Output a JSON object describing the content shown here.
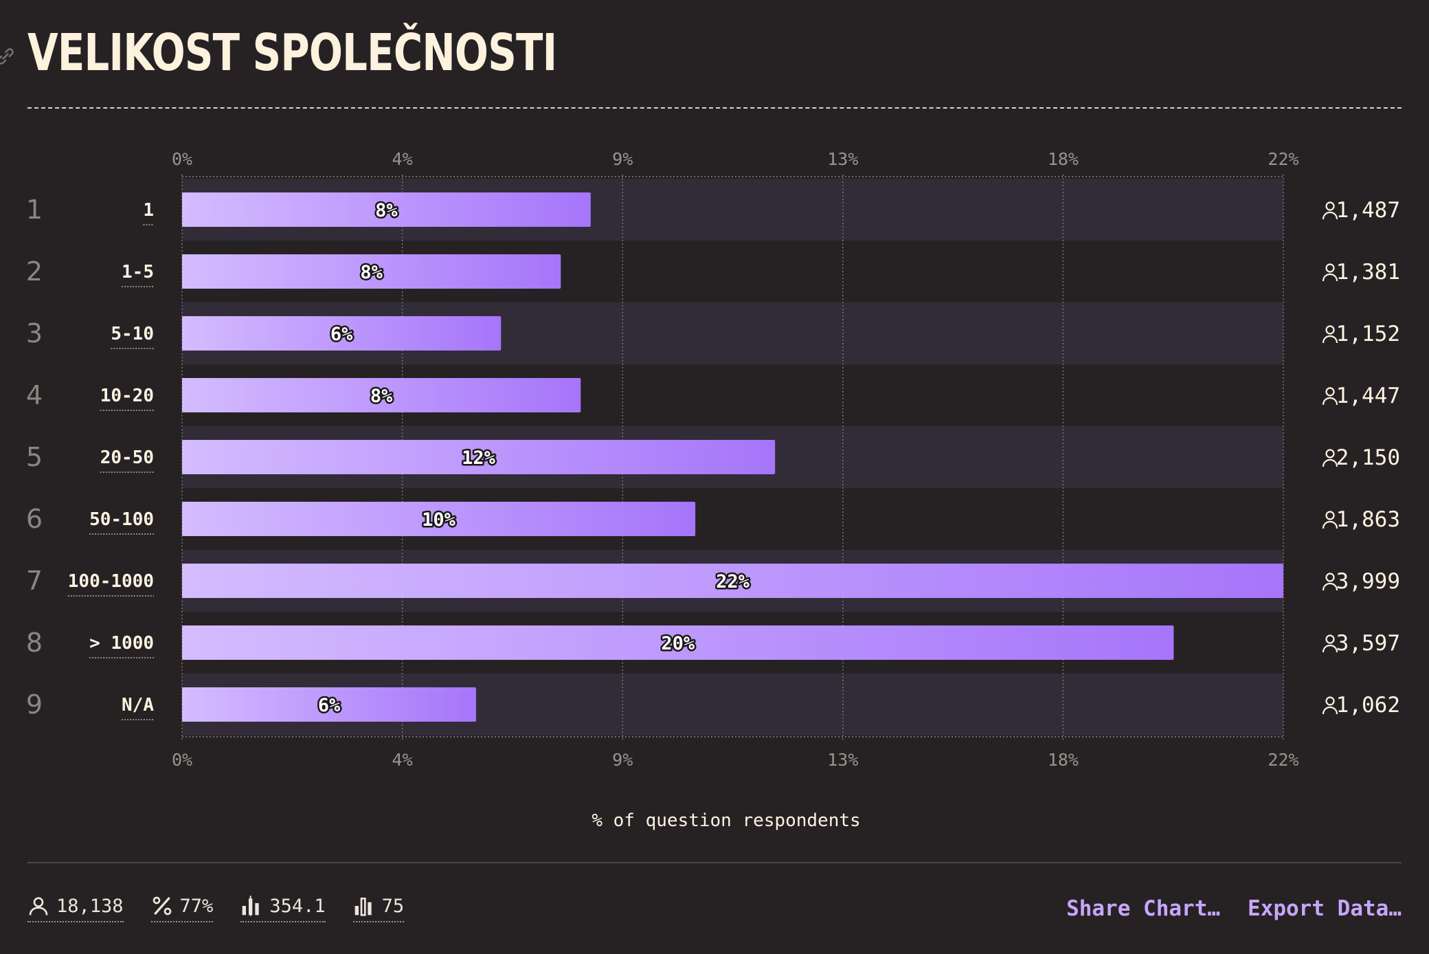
{
  "title": "VELIKOST SPOLEČNOSTI",
  "colors": {
    "background": "#262224",
    "bar_start": "#d4bcff",
    "bar_end": "#a675fa",
    "band": "#322c38",
    "link": "#c8a6ff"
  },
  "chart_data": {
    "type": "bar",
    "orientation": "horizontal",
    "categories": [
      "1",
      "1-5",
      "5-10",
      "10-20",
      "20-50",
      "50-100",
      "100-1000",
      "> 1000",
      "N/A"
    ],
    "row_numbers": [
      "1",
      "2",
      "3",
      "4",
      "5",
      "6",
      "7",
      "8",
      "9"
    ],
    "values": [
      8.2,
      7.6,
      6.4,
      8.0,
      11.9,
      10.3,
      22.1,
      19.9,
      5.9
    ],
    "value_labels": [
      "8%",
      "8%",
      "6%",
      "8%",
      "12%",
      "10%",
      "22%",
      "20%",
      "6%"
    ],
    "counts": [
      "1,487",
      "1,381",
      "1,152",
      "1,447",
      "2,150",
      "1,863",
      "3,999",
      "3,597",
      "1,062"
    ],
    "x_ticks": [
      "0%",
      "4%",
      "9%",
      "13%",
      "18%",
      "22%"
    ],
    "x_tick_values": [
      0,
      4.42,
      8.84,
      13.26,
      17.68,
      22.1
    ],
    "xlim": [
      0,
      22.1
    ],
    "xlabel": "% of question respondents",
    "grid": true
  },
  "footer": {
    "respondents": "18,138",
    "percent": "77%",
    "average": "354.1",
    "median": "75",
    "share_label": "Share Chart…",
    "export_label": "Export Data…"
  }
}
